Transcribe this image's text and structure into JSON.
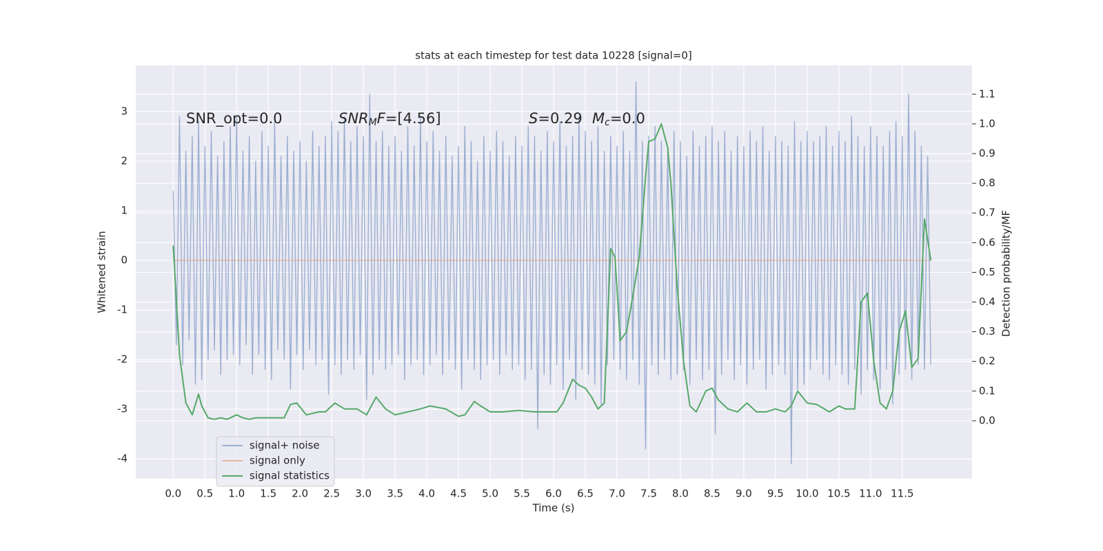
{
  "chart_data": {
    "type": "line",
    "title": "stats at each timestep for test data 10228 [signal=0]",
    "x_label": "Time (s)",
    "y_label": "Whitened strain",
    "y2_label": "Detection probability/MF",
    "xlim": [
      -0.59,
      12.6
    ],
    "ylim": [
      -4.4,
      3.93
    ],
    "y2lim": [
      -0.195,
      1.197
    ],
    "grid": true,
    "xticks": [
      {
        "value": 0,
        "label": "0.0"
      },
      0.5,
      {
        "value": 1,
        "label": "1.0"
      },
      1.5,
      {
        "value": 2,
        "label": "2.0"
      },
      2.5,
      {
        "value": 3,
        "label": "3.0"
      },
      3.5,
      {
        "value": 4,
        "label": "4.0"
      },
      4.5,
      {
        "value": 5,
        "label": "5.0"
      },
      5.5,
      {
        "value": 6,
        "label": "6.0"
      },
      6.5,
      {
        "value": 7,
        "label": "7.0"
      },
      7.5,
      {
        "value": 8,
        "label": "8.0"
      },
      8.5,
      {
        "value": 9,
        "label": "9.0"
      },
      9.5,
      {
        "value": 10,
        "label": "10.0"
      },
      10.5,
      {
        "value": 11,
        "label": "11.0"
      },
      11.5
    ],
    "yticks": [
      -4,
      -3,
      -2,
      -1,
      0,
      1,
      2,
      3
    ],
    "y2ticks": [
      {
        "value": 0,
        "label": "0.0"
      },
      0.1,
      0.2,
      0.3,
      0.4,
      0.5,
      0.6,
      0.7,
      0.8,
      0.9,
      {
        "value": 1,
        "label": "1.0"
      },
      1.1
    ],
    "annotations": [
      [
        {
          "text": "SNR_opt=0.0"
        }
      ],
      [
        {
          "text": "SNR",
          "style": "italic"
        },
        {
          "text": "M",
          "style": "italic-sub"
        },
        {
          "text": "F",
          "style": "italic"
        },
        {
          "text": "=[4.56]"
        }
      ],
      [
        {
          "text": "S",
          "style": "italic"
        },
        {
          "text": "=0.29"
        }
      ],
      [
        {
          "text": "M",
          "style": "italic"
        },
        {
          "text": "c",
          "style": "italic-sub"
        },
        {
          "text": "=0.0"
        }
      ]
    ],
    "series": [
      {
        "name": "signal+ noise",
        "color": "#4c72b0",
        "opacity": 0.5,
        "x": [
          0,
          0.05,
          0.1,
          0.15,
          0.2,
          0.25,
          0.3,
          0.35,
          0.4,
          0.45,
          0.5,
          0.55,
          0.6,
          0.65,
          0.7,
          0.75,
          0.8,
          0.85,
          0.9,
          0.95,
          1,
          1.05,
          1.1,
          1.15,
          1.2,
          1.25,
          1.3,
          1.35,
          1.4,
          1.45,
          1.5,
          1.55,
          1.6,
          1.65,
          1.7,
          1.75,
          1.8,
          1.85,
          1.9,
          1.95,
          2,
          2.05,
          2.1,
          2.15,
          2.2,
          2.25,
          2.3,
          2.35,
          2.4,
          2.45,
          2.5,
          2.55,
          2.6,
          2.65,
          2.7,
          2.75,
          2.8,
          2.85,
          2.9,
          2.95,
          3,
          3.05,
          3.1,
          3.15,
          3.2,
          3.25,
          3.3,
          3.35,
          3.4,
          3.45,
          3.5,
          3.55,
          3.6,
          3.65,
          3.7,
          3.75,
          3.8,
          3.85,
          3.9,
          3.95,
          4,
          4.05,
          4.1,
          4.15,
          4.2,
          4.25,
          4.3,
          4.35,
          4.4,
          4.45,
          4.5,
          4.55,
          4.6,
          4.65,
          4.7,
          4.75,
          4.8,
          4.85,
          4.9,
          4.95,
          5,
          5.05,
          5.1,
          5.15,
          5.2,
          5.25,
          5.3,
          5.35,
          5.4,
          5.45,
          5.5,
          5.55,
          5.6,
          5.65,
          5.7,
          5.75,
          5.8,
          5.85,
          5.9,
          5.95,
          6,
          6.05,
          6.1,
          6.15,
          6.2,
          6.25,
          6.3,
          6.35,
          6.4,
          6.45,
          6.5,
          6.55,
          6.6,
          6.65,
          6.7,
          6.75,
          6.8,
          6.85,
          6.9,
          6.95,
          7,
          7.05,
          7.1,
          7.15,
          7.2,
          7.25,
          7.3,
          7.35,
          7.4,
          7.45,
          7.5,
          7.55,
          7.6,
          7.65,
          7.7,
          7.75,
          7.8,
          7.85,
          7.9,
          7.95,
          8,
          8.05,
          8.1,
          8.15,
          8.2,
          8.25,
          8.3,
          8.35,
          8.4,
          8.45,
          8.5,
          8.55,
          8.6,
          8.65,
          8.7,
          8.75,
          8.8,
          8.85,
          8.9,
          8.95,
          9,
          9.05,
          9.1,
          9.15,
          9.2,
          9.25,
          9.3,
          9.35,
          9.4,
          9.45,
          9.5,
          9.55,
          9.6,
          9.65,
          9.7,
          9.75,
          9.8,
          9.85,
          9.9,
          9.95,
          10,
          10.05,
          10.1,
          10.15,
          10.2,
          10.25,
          10.3,
          10.35,
          10.4,
          10.45,
          10.5,
          10.55,
          10.6,
          10.65,
          10.7,
          10.75,
          10.8,
          10.85,
          10.9,
          10.95,
          11,
          11.05,
          11.1,
          11.15,
          11.2,
          11.25,
          11.3,
          11.35,
          11.4,
          11.45,
          11.5,
          11.55,
          11.6,
          11.65,
          11.7,
          11.75,
          11.8,
          11.85,
          11.9,
          11.95
        ],
        "values": [
          1.4,
          -1.7,
          2.9,
          -2.1,
          2.2,
          -1.6,
          2.5,
          -2.5,
          2.8,
          -2.4,
          2.3,
          -2.0,
          2.6,
          -1.8,
          2.1,
          -2.3,
          2.4,
          -2.0,
          2.7,
          -1.9,
          2.9,
          -2.1,
          2.2,
          -1.7,
          2.5,
          -2.3,
          2.0,
          -1.9,
          2.6,
          -2.2,
          2.3,
          -2.4,
          2.8,
          -1.8,
          2.1,
          -2.0,
          2.5,
          -2.6,
          2.2,
          -1.9,
          2.4,
          -2.2,
          2.0,
          -1.8,
          2.6,
          -2.1,
          2.3,
          -2.0,
          2.5,
          -2.7,
          2.8,
          -2.1,
          2.6,
          -2.3,
          2.9,
          -2.0,
          2.4,
          -2.2,
          2.7,
          -1.9,
          2.5,
          -2.8,
          3.35,
          -2.3,
          2.4,
          -2.0,
          2.6,
          -2.2,
          2.3,
          -2.1,
          2.5,
          -1.9,
          2.2,
          -2.4,
          2.7,
          -2.1,
          2.3,
          -2.0,
          2.9,
          -2.3,
          2.4,
          -2.1,
          2.6,
          -1.9,
          2.2,
          -2.3,
          2.5,
          -2.0,
          2.1,
          -2.2,
          2.3,
          -2.6,
          2.7,
          -2.0,
          2.4,
          -2.2,
          2.0,
          -2.4,
          2.5,
          -2.1,
          2.2,
          -2.0,
          2.6,
          -2.3,
          2.4,
          -1.9,
          2.1,
          -2.2,
          2.5,
          -2.1,
          2.3,
          -2.4,
          2.7,
          -2.2,
          2.5,
          -3.4,
          2.2,
          -2.3,
          2.6,
          -2.5,
          2.4,
          -2.1,
          2.8,
          -2.6,
          2.3,
          -2.0,
          2.5,
          -2.8,
          2.9,
          -2.2,
          2.6,
          -2.3,
          2.4,
          -2.5,
          2.7,
          -2.9,
          2.2,
          -2.1,
          2.5,
          -2.0,
          2.3,
          -2.2,
          2.6,
          -2.4,
          2.2,
          -2.0,
          3.6,
          -2.5,
          2.4,
          -3.8,
          2.5,
          -2.1,
          2.7,
          -2.3,
          2.4,
          -2.0,
          2.2,
          -2.4,
          2.6,
          -2.3,
          2.4,
          -2.2,
          2.1,
          -2.5,
          2.6,
          -2.0,
          2.3,
          -2.4,
          2.5,
          -2.2,
          2.7,
          -3.5,
          2.4,
          -2.3,
          2.6,
          -2.0,
          2.2,
          -2.4,
          2.5,
          -2.1,
          2.3,
          -2.5,
          2.6,
          -2.2,
          2.4,
          -2.0,
          2.7,
          -2.6,
          2.2,
          -2.3,
          2.5,
          -2.1,
          2.4,
          -2.3,
          2.3,
          -4.1,
          2.8,
          -2.6,
          2.4,
          -2.5,
          2.6,
          -2.2,
          2.4,
          -2.0,
          2.5,
          -2.3,
          2.7,
          -2.4,
          2.3,
          -2.1,
          2.6,
          -2.3,
          2.4,
          -2.5,
          2.9,
          -2.2,
          2.5,
          -2.7,
          2.3,
          -2.2,
          2.7,
          -2.4,
          2.5,
          -2.6,
          2.3,
          -2.2,
          2.6,
          -2.9,
          2.8,
          -2.3,
          2.5,
          -2.2,
          3.35,
          -2.4,
          2.6,
          -2.1,
          2.3,
          -2.2,
          2.1,
          -2.1
        ]
      },
      {
        "name": "signal only",
        "color": "#dd8452",
        "opacity": 0.5,
        "x": [
          0,
          11.95
        ],
        "values": [
          0,
          0
        ]
      },
      {
        "name": "signal statistics",
        "color": "#55a868",
        "axis": "y2",
        "x": [
          0,
          0.1,
          0.2,
          0.3,
          0.4,
          0.45,
          0.55,
          0.65,
          0.75,
          0.85,
          1.0,
          1.1,
          1.2,
          1.3,
          1.45,
          1.6,
          1.75,
          1.85,
          1.95,
          2.1,
          2.3,
          2.4,
          2.55,
          2.7,
          2.8,
          2.9,
          3.05,
          3.2,
          3.35,
          3.5,
          3.7,
          3.9,
          4.05,
          4.3,
          4.5,
          4.6,
          4.75,
          4.85,
          5.0,
          5.2,
          5.45,
          5.7,
          5.9,
          6.05,
          6.15,
          6.3,
          6.4,
          6.5,
          6.6,
          6.7,
          6.8,
          6.9,
          6.97,
          7.05,
          7.15,
          7.25,
          7.35,
          7.45,
          7.5,
          7.6,
          7.7,
          7.8,
          7.85,
          7.95,
          8.05,
          8.15,
          8.25,
          8.4,
          8.5,
          8.6,
          8.75,
          8.9,
          9.05,
          9.2,
          9.35,
          9.5,
          9.65,
          9.75,
          9.85,
          10.0,
          10.15,
          10.35,
          10.5,
          10.6,
          10.75,
          10.85,
          10.95,
          11.05,
          11.15,
          11.25,
          11.35,
          11.45,
          11.55,
          11.65,
          11.75,
          11.85,
          11.95
        ],
        "values": [
          0.59,
          0.22,
          0.06,
          0.02,
          0.09,
          0.05,
          0.01,
          0.005,
          0.01,
          0.005,
          0.02,
          0.01,
          0.005,
          0.01,
          0.01,
          0.01,
          0.01,
          0.055,
          0.06,
          0.02,
          0.03,
          0.03,
          0.06,
          0.04,
          0.04,
          0.04,
          0.02,
          0.08,
          0.04,
          0.02,
          0.03,
          0.04,
          0.05,
          0.04,
          0.015,
          0.02,
          0.065,
          0.05,
          0.03,
          0.03,
          0.035,
          0.03,
          0.03,
          0.03,
          0.06,
          0.14,
          0.12,
          0.11,
          0.08,
          0.04,
          0.06,
          0.58,
          0.55,
          0.27,
          0.3,
          0.42,
          0.55,
          0.82,
          0.94,
          0.95,
          1.0,
          0.92,
          0.8,
          0.45,
          0.2,
          0.05,
          0.03,
          0.1,
          0.11,
          0.07,
          0.04,
          0.03,
          0.06,
          0.03,
          0.03,
          0.04,
          0.03,
          0.05,
          0.1,
          0.06,
          0.055,
          0.03,
          0.05,
          0.04,
          0.04,
          0.4,
          0.43,
          0.2,
          0.06,
          0.04,
          0.1,
          0.3,
          0.37,
          0.18,
          0.21,
          0.68,
          0.54
        ]
      }
    ]
  }
}
